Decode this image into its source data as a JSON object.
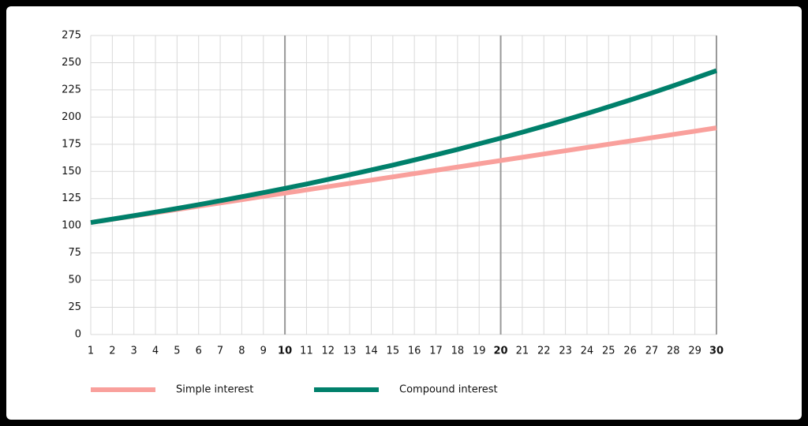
{
  "chart_data": {
    "type": "line",
    "x": [
      1,
      2,
      3,
      4,
      5,
      6,
      7,
      8,
      9,
      10,
      11,
      12,
      13,
      14,
      15,
      16,
      17,
      18,
      19,
      20,
      21,
      22,
      23,
      24,
      25,
      26,
      27,
      28,
      29,
      30
    ],
    "xlim": [
      1,
      30
    ],
    "xticks": [
      1,
      2,
      3,
      4,
      5,
      6,
      7,
      8,
      9,
      10,
      11,
      12,
      13,
      14,
      15,
      16,
      17,
      18,
      19,
      20,
      21,
      22,
      23,
      24,
      25,
      26,
      27,
      28,
      29,
      30
    ],
    "highlight_x": [
      10,
      20,
      30
    ],
    "ylim": [
      0,
      275
    ],
    "yticks": [
      0,
      25,
      50,
      75,
      100,
      125,
      150,
      175,
      200,
      225,
      250,
      275
    ],
    "grid": true,
    "legend": "bottom-left",
    "series": [
      {
        "name": "Simple interest",
        "color": "#f9a09c",
        "values": [
          103,
          106,
          109,
          112,
          115,
          118,
          121,
          124,
          127,
          130,
          133,
          136,
          139,
          142,
          145,
          148,
          151,
          154,
          157,
          160,
          163,
          166,
          169,
          172,
          175,
          178,
          181,
          184,
          187,
          190
        ]
      },
      {
        "name": "Compound interest",
        "color": "#00806b",
        "values": [
          103.0,
          106.1,
          109.3,
          112.6,
          115.9,
          119.4,
          123.0,
          126.7,
          130.5,
          134.4,
          138.4,
          142.6,
          146.9,
          151.3,
          155.8,
          160.5,
          165.3,
          170.2,
          175.4,
          180.6,
          186.0,
          191.6,
          197.4,
          203.3,
          209.4,
          215.7,
          222.1,
          228.8,
          235.7,
          242.7
        ]
      }
    ]
  }
}
